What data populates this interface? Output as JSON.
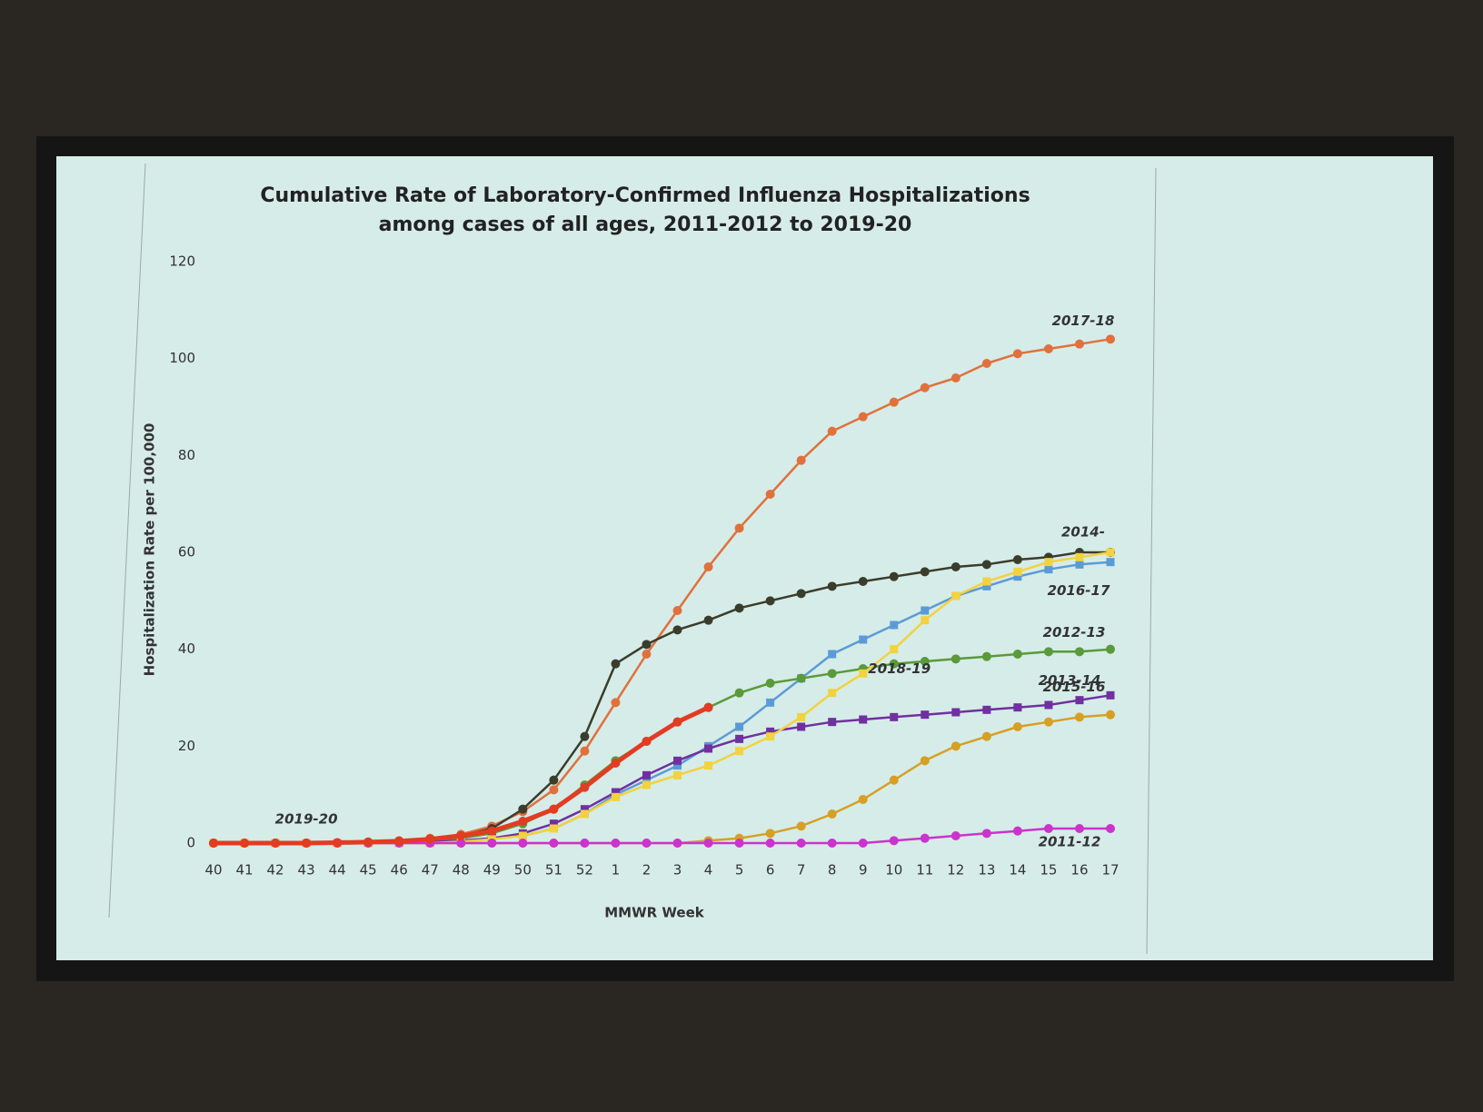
{
  "chart_data": {
    "type": "line",
    "title": "Cumulative Rate of Laboratory-Confirmed Influenza Hospitalizations among cases of all ages, 2011-2012 to 2019-20",
    "xlabel": "MMWR Week",
    "ylabel": "Hospitalization Rate per 100,000",
    "categories": [
      "40",
      "41",
      "42",
      "43",
      "44",
      "45",
      "46",
      "47",
      "48",
      "49",
      "50",
      "51",
      "52",
      "1",
      "2",
      "3",
      "4",
      "5",
      "6",
      "7",
      "8",
      "9",
      "10",
      "11",
      "12",
      "13",
      "14",
      "15",
      "16",
      "17"
    ],
    "ylim": [
      0,
      120
    ],
    "yticks": [
      0,
      20,
      40,
      60,
      80,
      100,
      120
    ],
    "grid": false,
    "series": [
      {
        "name": "2017-18",
        "color": "#e0713c",
        "marker": "circle",
        "values": [
          0,
          0,
          0,
          0,
          0,
          0.2,
          0.5,
          1,
          1.8,
          3.5,
          6.5,
          11,
          19,
          29,
          39,
          48,
          57,
          65,
          72,
          79,
          85,
          88,
          91,
          94,
          96,
          99,
          101,
          102,
          103,
          104
        ]
      },
      {
        "name": "2014-",
        "color": "#3b3d2c",
        "marker": "circle",
        "values": [
          0,
          0,
          0,
          0,
          0,
          0.2,
          0.4,
          0.8,
          1.5,
          3,
          7,
          13,
          22,
          37,
          41,
          44,
          46,
          48.5,
          50,
          51.5,
          53,
          54,
          55,
          56,
          57,
          57.5,
          58.5,
          59,
          60,
          60
        ]
      },
      {
        "name": "2016-17",
        "color": "#5b9bd5",
        "marker": "square",
        "values": [
          0,
          0,
          0,
          0,
          0,
          0,
          0,
          0.2,
          0.5,
          1,
          1.5,
          3,
          6,
          10,
          13,
          16,
          20,
          24,
          29,
          34,
          39,
          42,
          45,
          48,
          51,
          53,
          55,
          56.5,
          57.5,
          58
        ]
      },
      {
        "name": "2012-13",
        "color": "#5a9a3a",
        "marker": "circle",
        "values": [
          0,
          0,
          0,
          0,
          0,
          0,
          0.2,
          0.5,
          1,
          2,
          4,
          7,
          12,
          17,
          21,
          25,
          28,
          31,
          33,
          34,
          35,
          36,
          37,
          37.5,
          38,
          38.5,
          39,
          39.5,
          39.5,
          40
        ]
      },
      {
        "name": "2013-14",
        "color": "#7030a0",
        "marker": "square",
        "values": [
          0,
          0,
          0,
          0,
          0,
          0,
          0,
          0.2,
          0.5,
          1,
          2,
          4,
          7,
          10.5,
          14,
          17,
          19.5,
          21.5,
          23,
          24,
          25,
          25.5,
          26,
          26.5,
          27,
          27.5,
          28,
          28.5,
          29.5,
          30.5
        ]
      },
      {
        "name": "2018-19",
        "color": "#f2d23e",
        "marker": "square",
        "values": [
          0,
          0,
          0,
          0,
          0,
          0,
          0,
          0,
          0.3,
          0.8,
          1.5,
          3,
          6,
          9.5,
          12,
          14,
          16,
          19,
          22,
          26,
          31,
          35,
          40,
          46,
          51,
          54,
          56,
          58,
          59,
          60
        ]
      },
      {
        "name": "2015-16",
        "color": "#d6a024",
        "marker": "circle",
        "values": [
          0,
          0,
          0,
          0,
          0,
          0,
          0,
          0,
          0,
          0,
          0,
          0,
          0,
          0,
          0,
          0,
          0.5,
          1,
          2,
          3.5,
          6,
          9,
          13,
          17,
          20,
          22,
          24,
          25,
          26,
          26.5
        ]
      },
      {
        "name": "2011-12",
        "color": "#cc33cc",
        "marker": "circle",
        "values": [
          0,
          0,
          0,
          0,
          0,
          0,
          0,
          0,
          0,
          0,
          0,
          0,
          0,
          0,
          0,
          0,
          0,
          0,
          0,
          0,
          0,
          0,
          0.5,
          1,
          1.5,
          2,
          2.5,
          3,
          3,
          3
        ]
      },
      {
        "name": "2019-20",
        "color": "#e23c22",
        "marker": "circle",
        "values": [
          0,
          0,
          0,
          0,
          0.1,
          0.2,
          0.4,
          0.8,
          1.5,
          2.5,
          4.5,
          7,
          11.5,
          16.5,
          21,
          25,
          28,
          null,
          null,
          null,
          null,
          null,
          null,
          null,
          null,
          null,
          null,
          null,
          null,
          null
        ]
      }
    ]
  }
}
